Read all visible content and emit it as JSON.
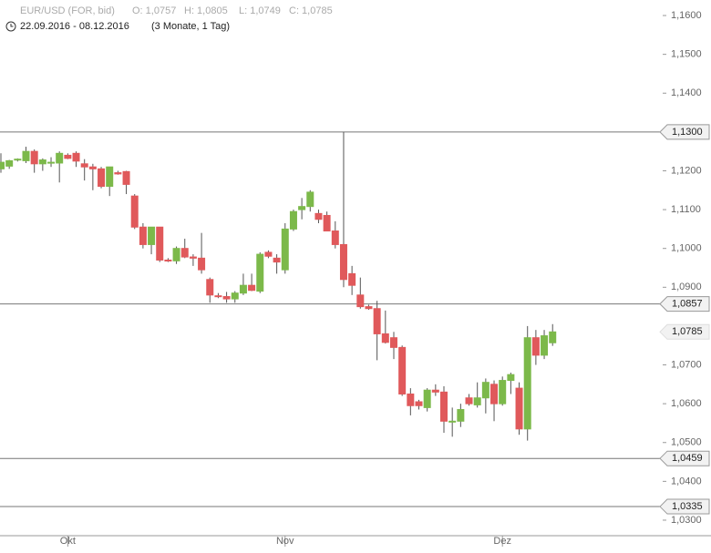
{
  "header": {
    "symbol": "EUR/USD (FOR, bid)",
    "open": "O: 1,0757",
    "high": "H: 1,0805",
    "low": "L: 1,0749",
    "close": "C: 1,0785",
    "range": "22.09.2016 - 08.12.2016",
    "period": "(3 Monate, 1 Tag)"
  },
  "chart_data": {
    "type": "candlestick",
    "categories": [
      null,
      null,
      null,
      null,
      null,
      null,
      null,
      null,
      "Okt",
      null,
      null,
      null,
      null,
      null,
      null,
      null,
      null,
      null,
      null,
      null,
      null,
      null,
      null,
      null,
      null,
      null,
      null,
      null,
      null,
      null,
      null,
      null,
      null,
      null,
      "Nov",
      null,
      null,
      null,
      null,
      null,
      null,
      null,
      null,
      null,
      null,
      null,
      null,
      null,
      null,
      null,
      null,
      null,
      null,
      null,
      null,
      null,
      null,
      null,
      null,
      null,
      "Dez",
      null,
      null,
      null,
      null,
      null,
      null
    ],
    "open": [
      1.1205,
      1.1212,
      1.1228,
      1.1226,
      1.125,
      1.1218,
      1.122,
      1.122,
      1.124,
      1.1245,
      1.1218,
      1.121,
      1.1205,
      1.116,
      1.1195,
      1.1198,
      1.1135,
      1.1055,
      1.101,
      1.1055,
      1.097,
      1.0968,
      1.1,
      1.0978,
      1.0975,
      1.092,
      1.0878,
      1.0876,
      1.087,
      1.0885,
      1.0905,
      1.089,
      1.099,
      1.0975,
      1.0945,
      1.105,
      1.11,
      1.1108,
      1.109,
      1.1085,
      1.1045,
      1.101,
      1.0935,
      1.088,
      1.085,
      1.0845,
      1.078,
      1.077,
      1.0745,
      1.0625,
      1.0605,
      1.059,
      1.0635,
      1.063,
      1.0555,
      1.0555,
      1.0615,
      1.0597,
      1.0615,
      1.065,
      1.06,
      1.066,
      1.064,
      1.0535,
      1.077,
      1.0725,
      1.0757
    ],
    "high": [
      1.1245,
      1.1228,
      1.1232,
      1.1262,
      1.1255,
      1.1232,
      1.1235,
      1.125,
      1.1245,
      1.125,
      1.123,
      1.1218,
      1.121,
      1.121,
      1.12,
      1.12,
      1.114,
      1.1065,
      1.1055,
      1.1055,
      1.0975,
      1.1005,
      1.1025,
      1.0985,
      1.104,
      1.0925,
      1.0885,
      1.0888,
      1.089,
      1.0935,
      1.0935,
      1.099,
      1.0995,
      1.0985,
      1.1065,
      1.11,
      1.113,
      1.115,
      1.11,
      1.1095,
      1.107,
      1.13,
      1.0955,
      1.0925,
      1.0855,
      1.0865,
      1.084,
      1.0785,
      1.075,
      1.064,
      1.061,
      1.064,
      1.065,
      1.0645,
      1.059,
      1.06,
      1.0625,
      1.0655,
      1.0665,
      1.066,
      1.067,
      1.068,
      1.0655,
      1.08,
      1.079,
      1.079,
      1.0805
    ],
    "low": [
      1.1195,
      1.1205,
      1.1224,
      1.122,
      1.1195,
      1.12,
      1.121,
      1.117,
      1.123,
      1.121,
      1.1175,
      1.115,
      1.1155,
      1.1135,
      1.119,
      1.114,
      1.105,
      1.1,
      1.0985,
      1.0965,
      1.0965,
      1.096,
      1.0975,
      1.0955,
      1.0935,
      1.086,
      1.0872,
      1.086,
      1.086,
      1.088,
      1.089,
      1.0885,
      1.0975,
      1.0935,
      1.0935,
      1.1045,
      1.1075,
      1.1095,
      1.1065,
      1.1045,
      1.1,
      1.09,
      1.088,
      1.0845,
      1.0842,
      1.0712,
      1.0755,
      1.0715,
      1.062,
      1.057,
      1.0585,
      1.058,
      1.062,
      1.0525,
      1.0515,
      1.054,
      1.0595,
      1.059,
      1.0575,
      1.0555,
      1.0595,
      1.0625,
      1.052,
      1.0505,
      1.07,
      1.0715,
      1.0749
    ],
    "close": [
      1.1222,
      1.1226,
      1.123,
      1.125,
      1.1218,
      1.1228,
      1.1222,
      1.1245,
      1.1232,
      1.1225,
      1.121,
      1.1205,
      1.116,
      1.121,
      1.1192,
      1.1165,
      1.1055,
      1.101,
      1.1055,
      1.097,
      1.0968,
      1.1,
      1.0978,
      1.0975,
      1.0945,
      1.088,
      1.0876,
      1.087,
      1.0885,
      1.0905,
      1.0892,
      1.0985,
      1.098,
      1.0965,
      1.105,
      1.1095,
      1.1108,
      1.1145,
      1.1075,
      1.1045,
      1.101,
      1.092,
      1.0905,
      1.085,
      1.0845,
      1.078,
      1.0758,
      1.0745,
      1.0625,
      1.0595,
      1.0595,
      1.0635,
      1.063,
      1.0555,
      1.0555,
      1.0585,
      1.06,
      1.0615,
      1.0655,
      1.06,
      1.066,
      1.0675,
      1.0535,
      1.077,
      1.0725,
      1.0775,
      1.0785
    ],
    "up_color": "#7cb94a",
    "down_color": "#e0595b",
    "ylim": [
      1.026,
      1.164
    ],
    "yticks": [
      {
        "value": 1.16,
        "label": "1,1600"
      },
      {
        "value": 1.15,
        "label": "1,1500"
      },
      {
        "value": 1.14,
        "label": "1,1400"
      },
      {
        "value": 1.12,
        "label": "1,1200"
      },
      {
        "value": 1.11,
        "label": "1,1100"
      },
      {
        "value": 1.1,
        "label": "1,1000"
      },
      {
        "value": 1.09,
        "label": "1,0900"
      },
      {
        "value": 1.07,
        "label": "1,0700"
      },
      {
        "value": 1.06,
        "label": "1,0600"
      },
      {
        "value": 1.05,
        "label": "1,0500"
      },
      {
        "value": 1.04,
        "label": "1,0400"
      },
      {
        "value": 1.03,
        "label": "1,0300"
      }
    ],
    "levels": [
      {
        "value": 1.13,
        "label": "1,1300"
      },
      {
        "value": 1.0857,
        "label": "1,0857"
      },
      {
        "value": 1.0459,
        "label": "1,0459"
      },
      {
        "value": 1.0335,
        "label": "1,0335"
      }
    ],
    "last_price": {
      "value": 1.0785,
      "label": "1,0785"
    }
  }
}
